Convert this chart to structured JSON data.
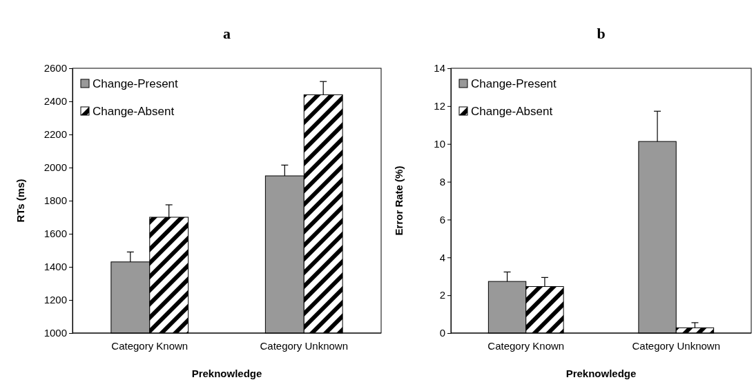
{
  "chart_data": [
    {
      "type": "bar",
      "title": "a",
      "xlabel": "Preknowledge",
      "ylabel": "RTs (ms)",
      "categories": [
        "Category Known",
        "Category Unknown"
      ],
      "series": [
        {
          "name": "Change-Present",
          "color": "#999999",
          "values": [
            1430,
            1950
          ],
          "errors": [
            60,
            65
          ]
        },
        {
          "name": "Change-Absent",
          "color": "#000000",
          "values": [
            1700,
            2440
          ],
          "errors": [
            75,
            80
          ]
        }
      ],
      "ylim": [
        1000,
        2600
      ],
      "yticks": [
        1000,
        1200,
        1400,
        1600,
        1800,
        2000,
        2200,
        2400,
        2600
      ],
      "legend": "top left",
      "grid": false
    },
    {
      "type": "bar",
      "title": "b",
      "xlabel": "Preknowledge",
      "ylabel": "Error Rate (%)",
      "categories": [
        "Category Known",
        "Category Unknown"
      ],
      "series": [
        {
          "name": "Change-Present",
          "color": "#999999",
          "values": [
            2.73,
            10.13
          ],
          "errors": [
            0.5,
            1.6
          ]
        },
        {
          "name": "Change-Absent",
          "color": "#000000",
          "values": [
            2.46,
            0.28
          ],
          "errors": [
            0.48,
            0.27
          ]
        }
      ],
      "ylim": [
        0,
        14
      ],
      "yticks": [
        0,
        2,
        4,
        6,
        8,
        10,
        12,
        14
      ],
      "legend": "top left",
      "grid": false
    }
  ]
}
